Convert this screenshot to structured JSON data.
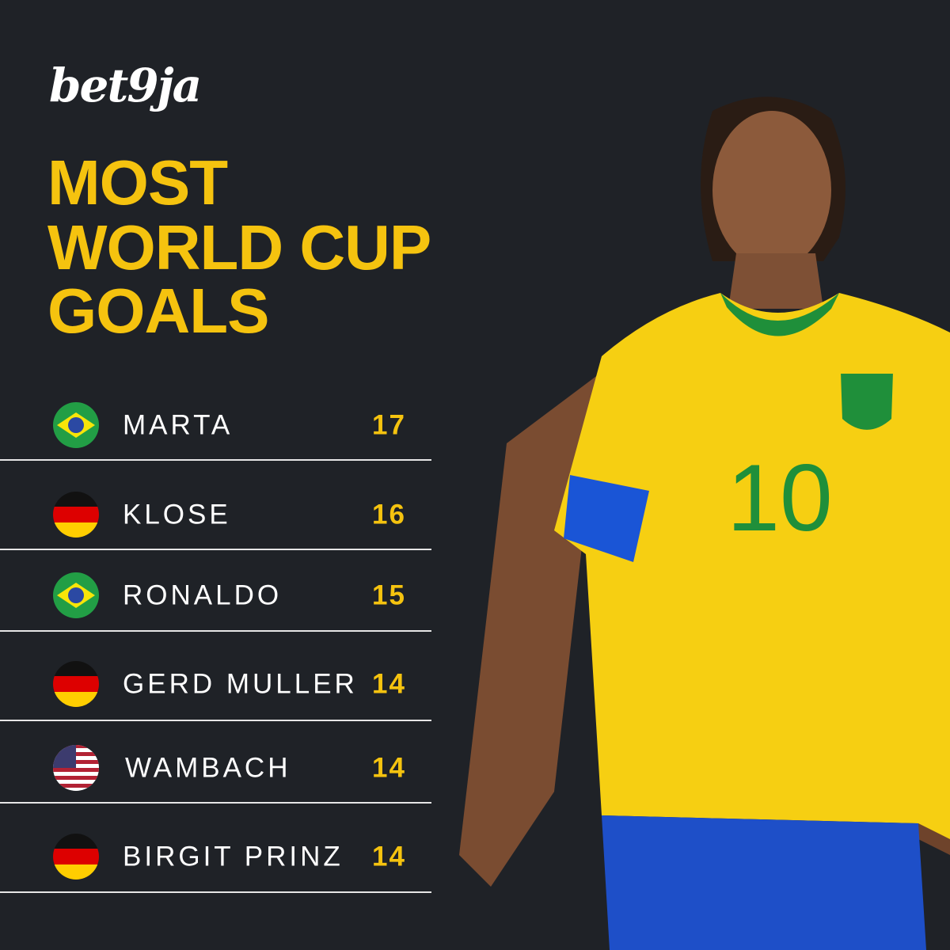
{
  "header": {
    "logo": "bet9ja",
    "title_lines": [
      "MOST",
      "WORLD CUP",
      "GOALS"
    ]
  },
  "table": {
    "rows": [
      {
        "name": "MARTA",
        "goals": 17
      },
      {
        "name": "KLOSE",
        "goals": 16
      },
      {
        "name": "RONALDO",
        "goals": 15
      },
      {
        "name": "GERD MULLER",
        "goals": 14
      },
      {
        "name": "WAMBACH",
        "goals": 14
      },
      {
        "name": "BIRGIT PRINZ",
        "goals": 14
      }
    ]
  },
  "photo": {
    "jersey_number": "10"
  }
}
